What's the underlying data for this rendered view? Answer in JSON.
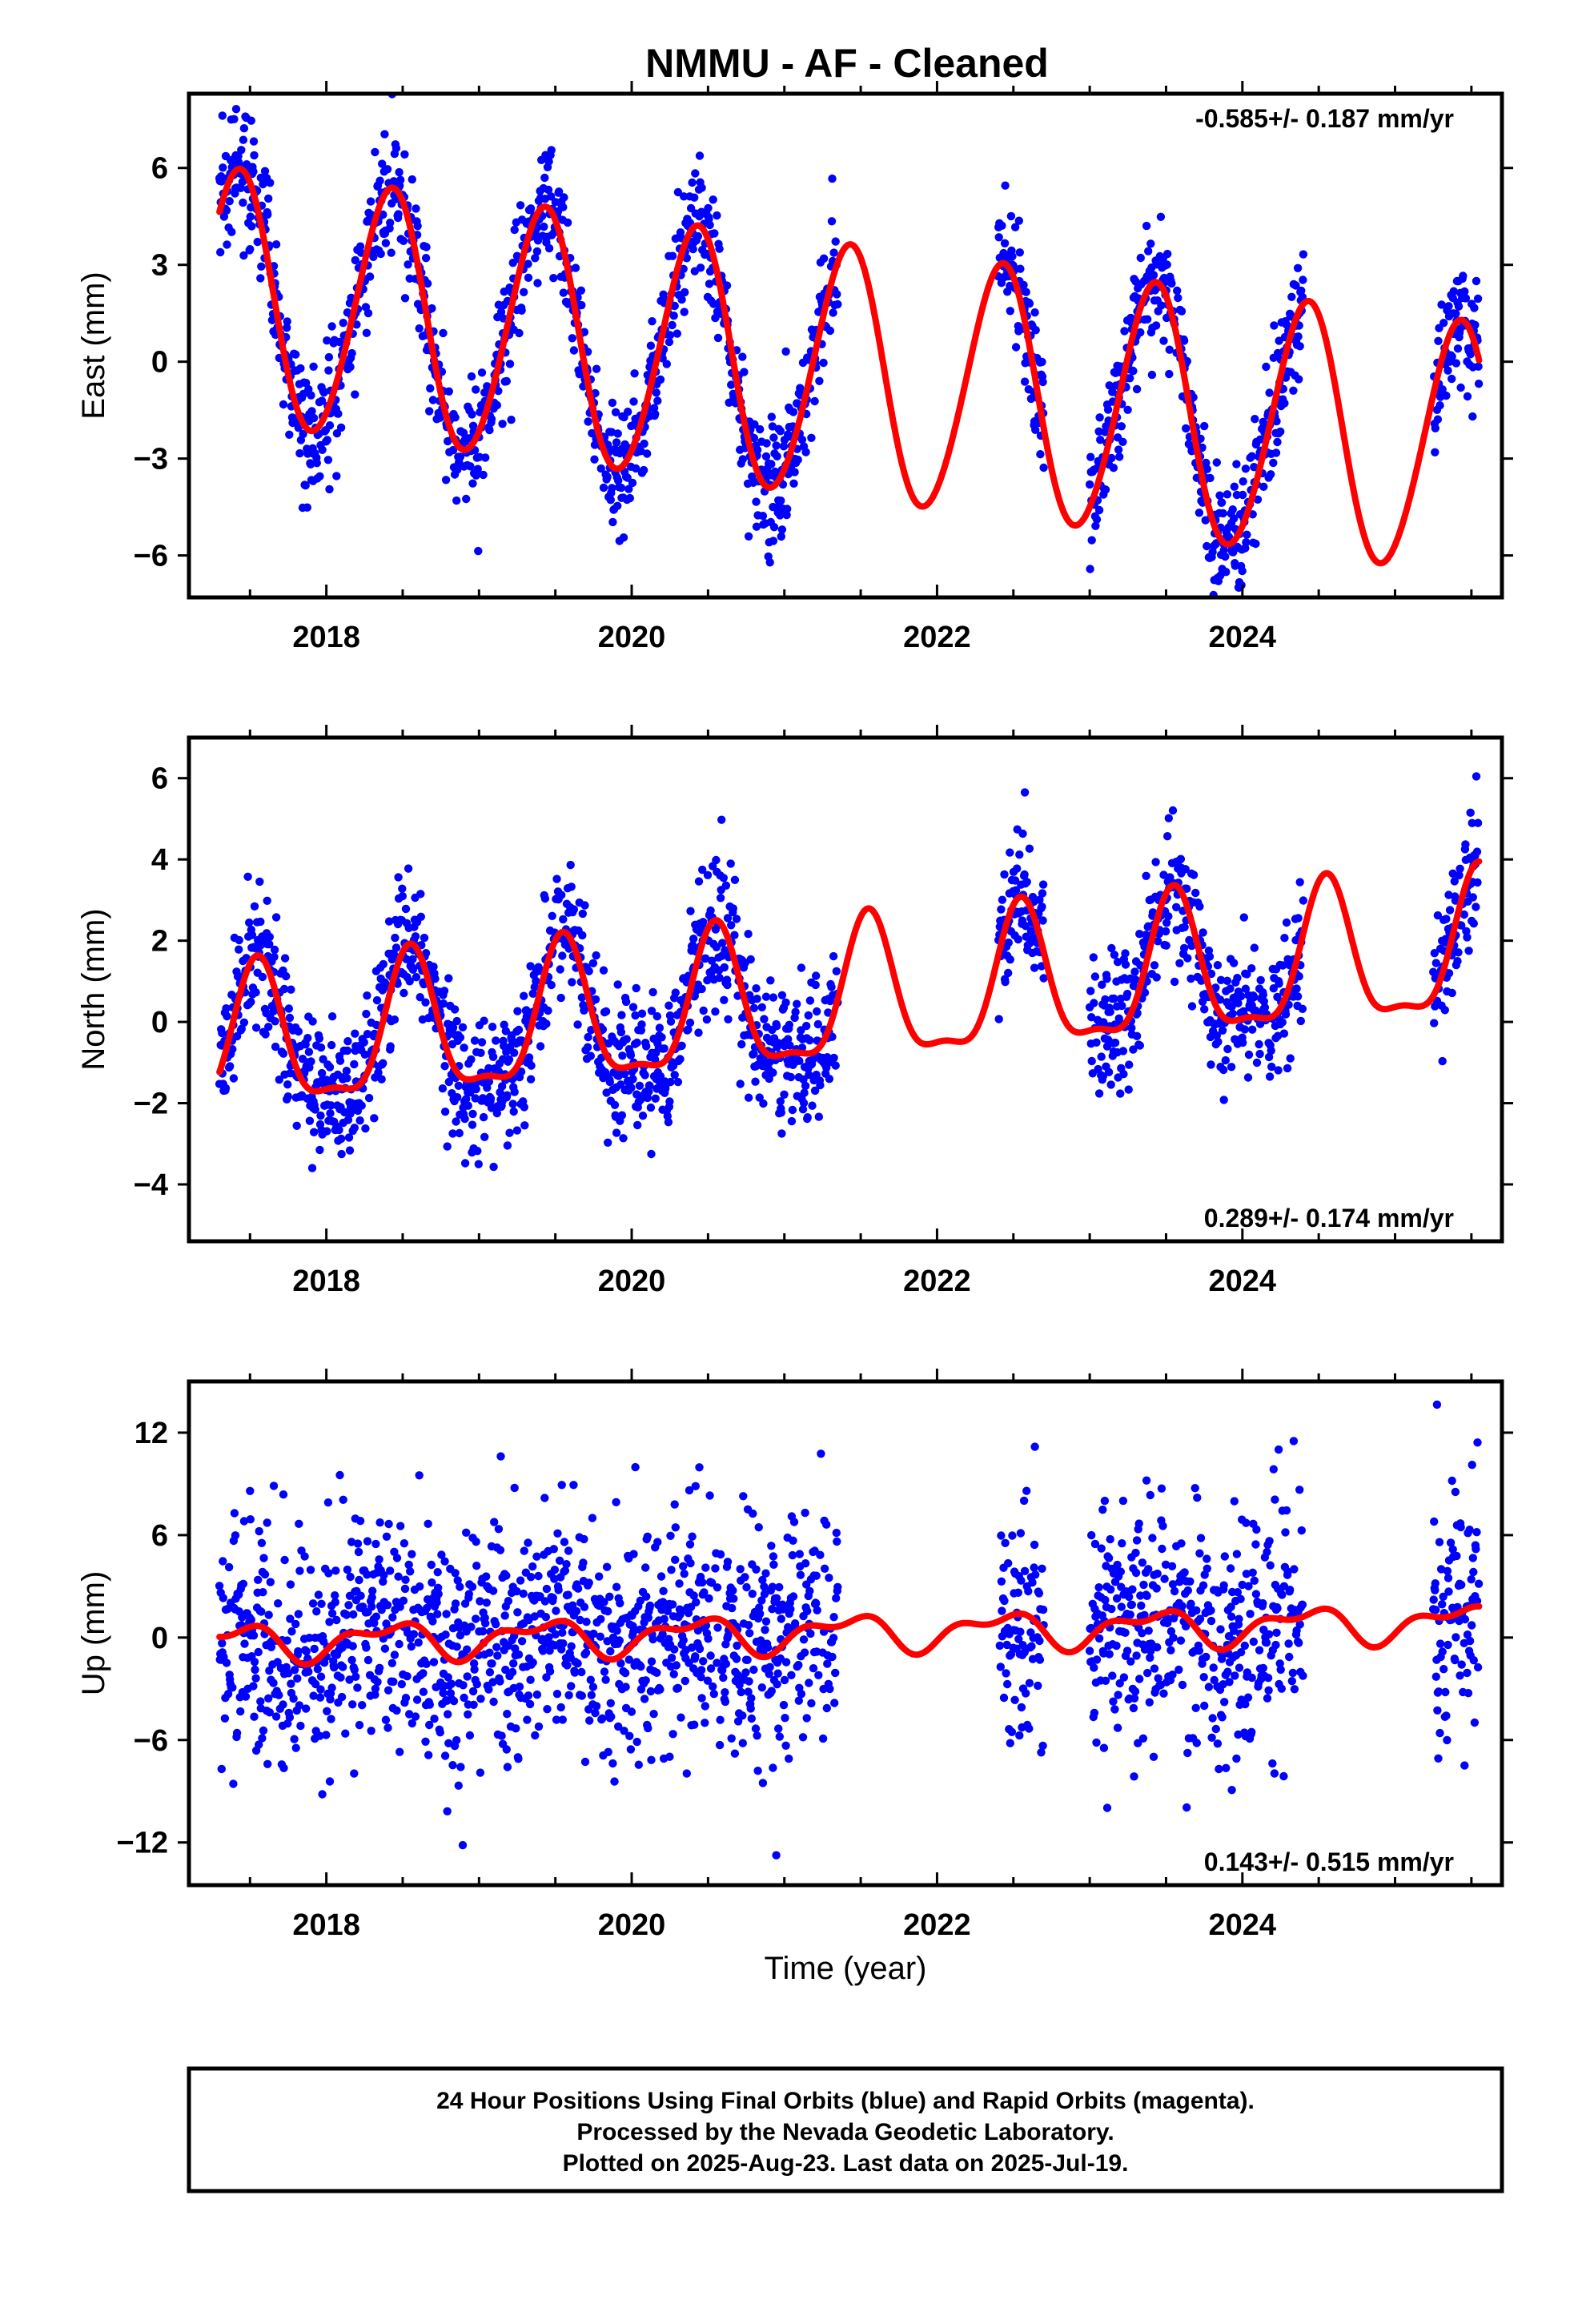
{
  "title": "NMMU  - AF - Cleaned",
  "footer": {
    "lines": [
      "24 Hour Positions Using Final Orbits (blue) and Rapid Orbits (magenta).",
      "Processed by the Nevada Geodetic Laboratory.",
      "Plotted on 2025-Aug-23. Last data on 2025-Jul-19."
    ]
  },
  "colors": {
    "points": "#0000ff",
    "fit": "#ff0000",
    "frame": "#000000"
  },
  "chart_data": [
    {
      "type": "scatter",
      "key": "east",
      "ylabel": "East (mm)",
      "xlabel": "",
      "rate": "-0.585+/- 0.187 mm/yr",
      "rate_position": "top-right",
      "xlim": [
        2017.1,
        2025.7
      ],
      "ylim": [
        -7.3,
        8.3
      ],
      "xticks": [
        2018,
        2020,
        2022,
        2024
      ],
      "yticks": [
        -6,
        -3,
        0,
        3,
        6
      ],
      "fit": {
        "offset": -0.4,
        "trend": -0.585,
        "t0": 2021.4,
        "annual_amp": 3.9,
        "annual_peak": 2021.42,
        "semiannual_amp": 0.25,
        "semiannual_peak": 2021.5
      },
      "noise_sd": 0.95,
      "data_segments": [
        [
          2017.3,
          2021.35
        ],
        [
          2022.4,
          2022.7
        ],
        [
          2023.0,
          2024.4
        ],
        [
          2025.25,
          2025.55
        ]
      ],
      "series": [
        {
          "name": "24 Hour Positions (Final Orbits)",
          "role": "points"
        },
        {
          "name": "model fit",
          "role": "fit"
        }
      ]
    },
    {
      "type": "scatter",
      "key": "north",
      "ylabel": "North (mm)",
      "xlabel": "",
      "rate": "0.289+/- 0.174 mm/yr",
      "rate_position": "bottom-right",
      "xlim": [
        2017.1,
        2025.7
      ],
      "ylim": [
        -5.4,
        7.0
      ],
      "xticks": [
        2018,
        2020,
        2022,
        2024
      ],
      "yticks": [
        -4,
        -2,
        0,
        2,
        4,
        6
      ],
      "fit": {
        "offset": 0.5,
        "trend": 0.289,
        "t0": 2021.4,
        "annual_amp": 1.7,
        "annual_peak": 2021.55,
        "semiannual_amp": 0.55,
        "semiannual_peak": 2021.55
      },
      "noise_sd": 0.85,
      "data_segments": [
        [
          2017.3,
          2021.35
        ],
        [
          2022.4,
          2022.7
        ],
        [
          2023.0,
          2024.4
        ],
        [
          2025.25,
          2025.55
        ]
      ],
      "series": [
        {
          "name": "24 Hour Positions (Final Orbits)",
          "role": "points"
        },
        {
          "name": "model fit",
          "role": "fit"
        }
      ]
    },
    {
      "type": "scatter",
      "key": "up",
      "ylabel": "Up (mm)",
      "xlabel": "Time (year)",
      "rate": "0.143+/- 0.515 mm/yr",
      "rate_position": "bottom-right",
      "xlim": [
        2017.1,
        2025.7
      ],
      "ylim": [
        -14.5,
        15.0
      ],
      "xticks": [
        2018,
        2020,
        2022,
        2024
      ],
      "yticks": [
        -12,
        -6,
        0,
        6,
        12
      ],
      "fit": {
        "offset": 0.3,
        "trend": 0.143,
        "t0": 2021.4,
        "annual_amp": 0.9,
        "annual_peak": 2021.4,
        "semiannual_amp": 0.5,
        "semiannual_peak": 2021.6
      },
      "noise_sd": 3.6,
      "data_segments": [
        [
          2017.3,
          2021.35
        ],
        [
          2022.4,
          2022.7
        ],
        [
          2023.0,
          2024.4
        ],
        [
          2025.25,
          2025.55
        ]
      ],
      "series": [
        {
          "name": "24 Hour Positions (Final Orbits)",
          "role": "points"
        },
        {
          "name": "model fit",
          "role": "fit"
        }
      ]
    }
  ]
}
